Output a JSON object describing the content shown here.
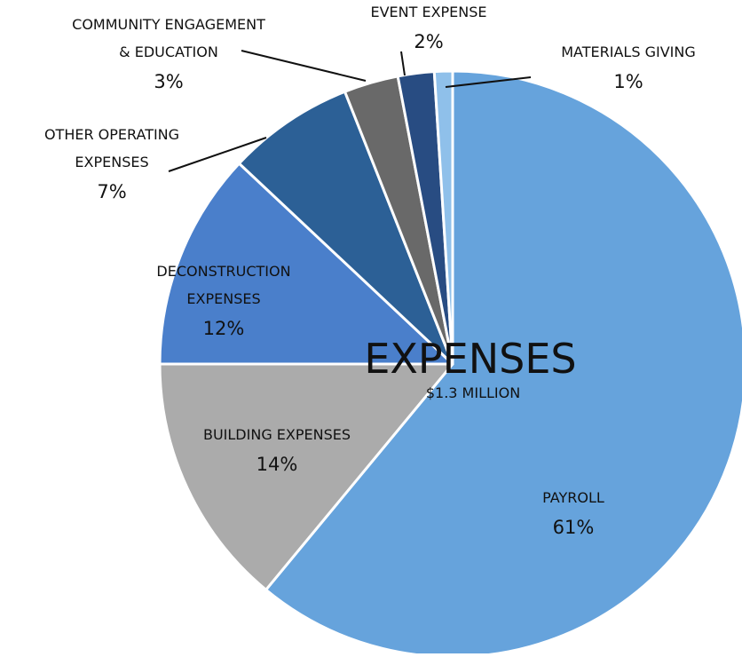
{
  "chart_data": {
    "type": "pie",
    "title": "EXPENSES",
    "subtitle": "$1.3 MILLION",
    "slices": [
      {
        "label_lines": [
          "PAYROLL"
        ],
        "pct_label": "61%",
        "value": 61,
        "color": "#66a3dc"
      },
      {
        "label_lines": [
          "BUILDING EXPENSES"
        ],
        "pct_label": "14%",
        "value": 14,
        "color": "#ababab"
      },
      {
        "label_lines": [
          "DECONSTRUCTION",
          "EXPENSES"
        ],
        "pct_label": "12%",
        "value": 12,
        "color": "#4a7fcb"
      },
      {
        "label_lines": [
          "OTHER OPERATING",
          "EXPENSES"
        ],
        "pct_label": "7%",
        "value": 7,
        "color": "#2c6096"
      },
      {
        "label_lines": [
          "COMMUNITY ENGAGEMENT",
          "& EDUCATION"
        ],
        "pct_label": "3%",
        "value": 3,
        "color": "#696969"
      },
      {
        "label_lines": [
          "EVENT EXPENSE"
        ],
        "pct_label": "2%",
        "value": 2,
        "color": "#284c82"
      },
      {
        "label_lines": [
          "MATERIALS GIVING"
        ],
        "pct_label": "1%",
        "value": 1,
        "color": "#8fc0ea"
      }
    ]
  }
}
